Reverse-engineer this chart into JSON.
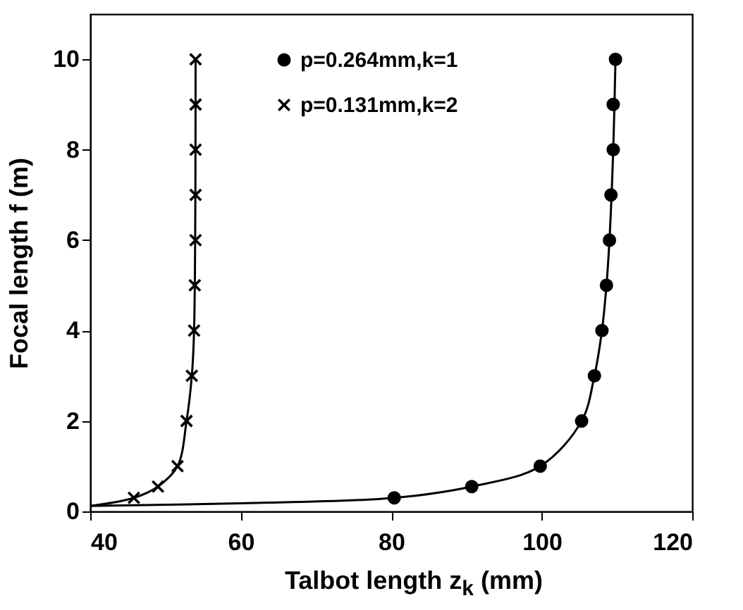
{
  "chart_data": {
    "type": "scatter",
    "xlabel": "Talbot length z$_{k}$ (mm)",
    "ylabel": "Focal length f (m)",
    "xlim": [
      40,
      120
    ],
    "xticks": [
      40,
      60,
      80,
      100,
      120
    ],
    "ylim": [
      0,
      11
    ],
    "yticks": [
      0,
      2,
      4,
      6,
      8,
      10
    ],
    "grid": false,
    "legend": "top right",
    "series": [
      {
        "name": "p=0.264mm,k=1",
        "color": "#000000",
        "marker": "circle",
        "x": [
          80.4,
          90.7,
          99.8,
          105.3,
          107.0,
          108.0,
          108.6,
          109.0,
          109.2,
          109.5,
          109.5,
          109.8
        ],
        "values": [
          0.3,
          0.55,
          1,
          2,
          3,
          4,
          5,
          6,
          7,
          8,
          9,
          10
        ]
      },
      {
        "name": "p=0.131mm,k=2",
        "color": "#000000",
        "marker": "cross",
        "x": [
          45.8,
          49.0,
          51.6,
          52.8,
          53.5,
          53.8,
          53.9,
          54.0,
          54.0,
          54.0,
          54.0,
          54.0
        ],
        "values": [
          0.3,
          0.55,
          1,
          2,
          3,
          4,
          5,
          6,
          7,
          8,
          9,
          10
        ]
      },
      {
        "type": "line",
        "color": "#000000",
        "x": [
          40,
          60,
          80.4,
          90.7,
          99.8,
          105.3,
          107.0,
          108.0,
          108.6,
          109.0,
          109.5,
          109.8
        ],
        "values": [
          0.12,
          0.18,
          0.3,
          0.55,
          1,
          2,
          3,
          4,
          5,
          6,
          8,
          10
        ]
      },
      {
        "type": "line",
        "color": "#000000",
        "x": [
          40,
          45.8,
          49.0,
          51.6,
          52.8,
          53.5,
          53.8,
          54.0
        ],
        "values": [
          0.12,
          0.3,
          0.55,
          1,
          2,
          3,
          4,
          10
        ]
      }
    ]
  }
}
